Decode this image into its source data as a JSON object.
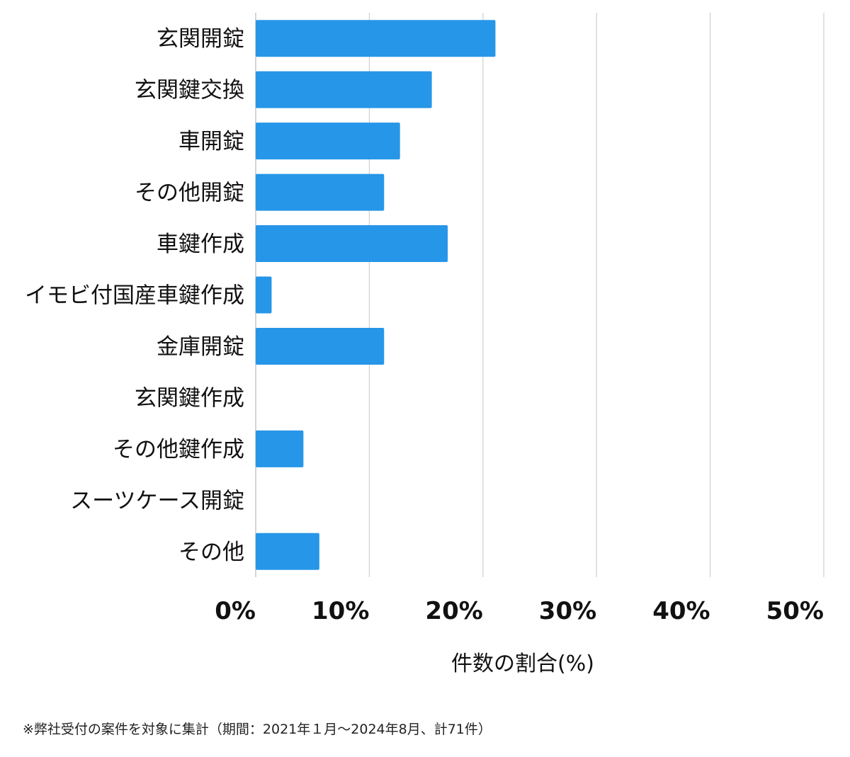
{
  "chart_data": {
    "type": "bar",
    "orientation": "horizontal",
    "categories": [
      "玄関開錠",
      "玄関鍵交換",
      "車開錠",
      "その他開錠",
      "車鍵作成",
      "イモビ付国産車鍵作成",
      "金庫開錠",
      "玄関鍵作成",
      "その他鍵作成",
      "スーツケース開錠",
      "その他"
    ],
    "values": [
      21.1,
      15.5,
      12.7,
      11.3,
      16.9,
      1.4,
      11.3,
      0,
      4.2,
      0,
      5.6
    ],
    "xlabel": "件数の割合(%)",
    "ylabel": "",
    "xlim": [
      0,
      50
    ],
    "x_ticks": [
      0,
      10,
      20,
      30,
      40,
      50
    ],
    "x_tick_labels": [
      "0%",
      "10%",
      "20%",
      "30%",
      "40%",
      "50%"
    ],
    "grid": true,
    "bar_color": "#2696e8",
    "grid_color": "#d0d0d0"
  },
  "footnote": "※弊社受付の案件を対象に集計（期間：2021年１月〜2024年8月、計71件）"
}
